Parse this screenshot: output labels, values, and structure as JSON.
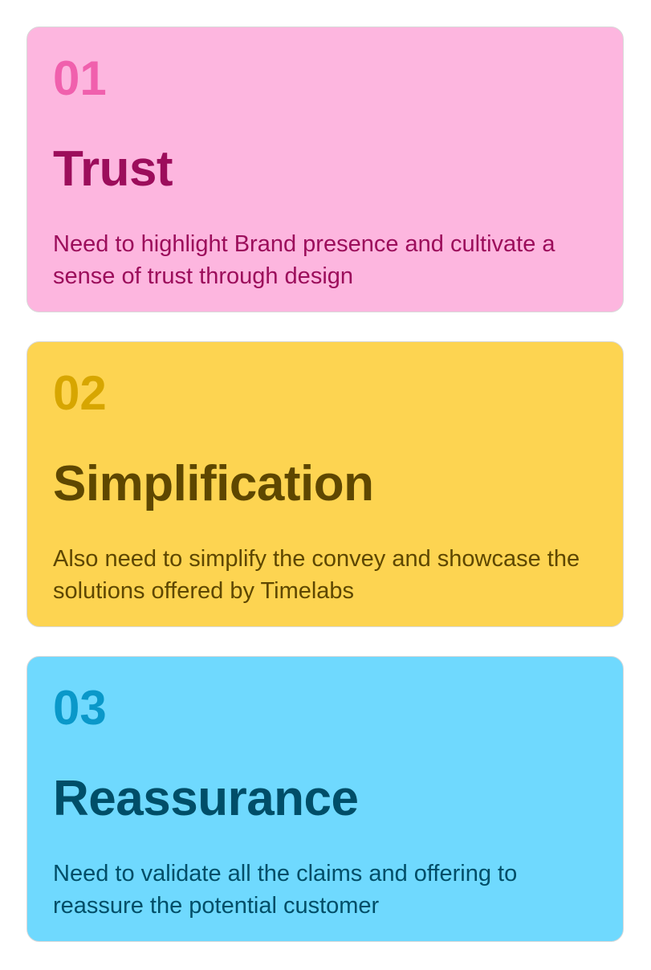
{
  "cards": [
    {
      "number": "01",
      "title": "Trust",
      "description": "Need to highlight Brand presence and cultivate a sense of trust through design",
      "colors": {
        "background": "#fdb6df",
        "number": "#f060ad",
        "text": "#9c0d5b"
      }
    },
    {
      "number": "02",
      "title": "Simplification",
      "description": "Also need to simplify the convey and showcase the solutions offered by Timelabs",
      "colors": {
        "background": "#fdd451",
        "number": "#d7a600",
        "text": "#5e4700"
      }
    },
    {
      "number": "03",
      "title": "Reassurance",
      "description": "Need to validate all the claims and offering to reassure the potential customer",
      "colors": {
        "background": "#6fd9fe",
        "number": "#0a98c9",
        "text": "#004e68"
      }
    }
  ]
}
